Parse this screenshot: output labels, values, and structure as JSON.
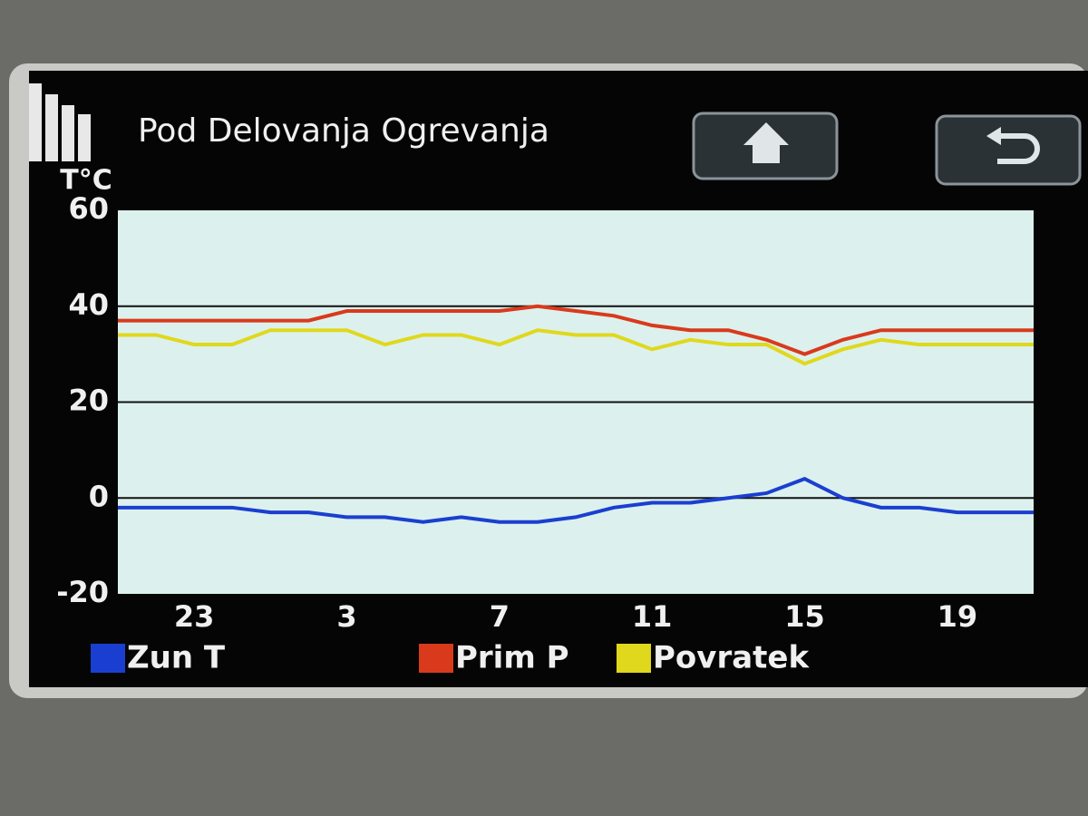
{
  "chart_data": {
    "type": "line",
    "title": "Pod Delovanja Ogrevanja",
    "y_label": "T°C",
    "categories": [
      null,
      null,
      "23",
      null,
      null,
      null,
      "3",
      null,
      null,
      null,
      "7",
      null,
      null,
      null,
      "11",
      null,
      null,
      null,
      "15",
      null,
      null,
      null,
      "19",
      null,
      null
    ],
    "series": [
      {
        "name": "Zun T",
        "color": "#1a3fd0",
        "values": [
          -2,
          -2,
          -2,
          -2,
          -3,
          -3,
          -4,
          -4,
          -5,
          -4,
          -5,
          -5,
          -4,
          -2,
          -1,
          -1,
          0,
          1,
          4,
          0,
          -2,
          -2,
          -3,
          -3,
          -3
        ]
      },
      {
        "name": "Prim P",
        "color": "#d93a1c",
        "values": [
          37,
          37,
          37,
          37,
          37,
          37,
          39,
          39,
          39,
          39,
          39,
          40,
          39,
          38,
          36,
          35,
          35,
          33,
          30,
          33,
          35,
          35,
          35,
          35,
          35
        ]
      },
      {
        "name": "Povratek",
        "color": "#e0d81c",
        "values": [
          34,
          34,
          32,
          32,
          35,
          35,
          35,
          32,
          34,
          34,
          32,
          35,
          34,
          34,
          31,
          33,
          32,
          32,
          28,
          31,
          33,
          32,
          32,
          32,
          32
        ]
      }
    ],
    "ylim": [
      -20,
      60
    ],
    "yticks": [
      -20,
      0,
      20,
      40,
      60
    ],
    "grid": true
  }
}
